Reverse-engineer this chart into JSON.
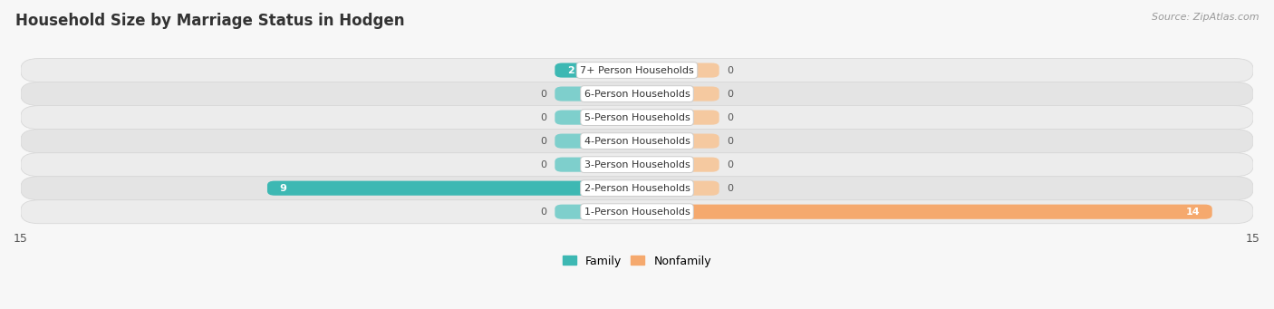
{
  "title": "Household Size by Marriage Status in Hodgen",
  "source": "Source: ZipAtlas.com",
  "categories": [
    "7+ Person Households",
    "6-Person Households",
    "5-Person Households",
    "4-Person Households",
    "3-Person Households",
    "2-Person Households",
    "1-Person Households"
  ],
  "family_values": [
    2,
    0,
    0,
    0,
    0,
    9,
    0
  ],
  "nonfamily_values": [
    0,
    0,
    0,
    0,
    0,
    0,
    14
  ],
  "family_color": "#3db8b3",
  "nonfamily_color": "#f5a96e",
  "stub_family_color": "#7ecfcc",
  "stub_nonfamily_color": "#f5c9a0",
  "row_bg_color_odd": "#f0f0f0",
  "row_bg_color_even": "#e8e8e8",
  "background_color": "#f7f7f7",
  "xlim_left": -15,
  "xlim_right": 15,
  "stub_size": 2.0,
  "bar_height": 0.62,
  "title_fontsize": 12,
  "source_fontsize": 8,
  "label_fontsize": 8,
  "value_fontsize": 8
}
